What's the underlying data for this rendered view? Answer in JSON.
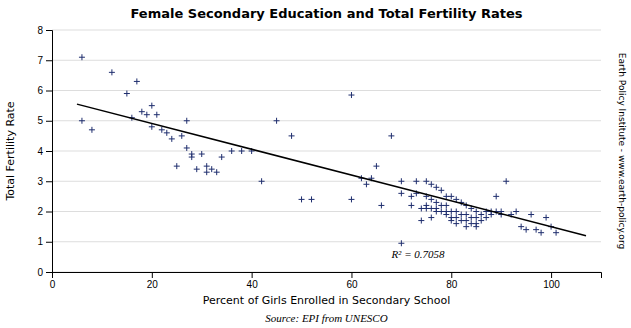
{
  "chart_data": {
    "type": "scatter",
    "title": "Female Secondary Education and Total Fertility Rates",
    "xlabel": "Percent of Girls Enrolled in Secondary School",
    "ylabel": "Total Fertility Rate",
    "annotations": [
      {
        "text": "R² = 0.7058",
        "x": 68,
        "y": 0.45
      },
      {
        "text": "Source: EPI from UNESCO"
      },
      {
        "text": "Earth Policy Institute - www.earth-policy.org"
      }
    ],
    "xlim": [
      0,
      110
    ],
    "ylim": [
      0,
      8
    ],
    "xticks": [
      0,
      20,
      40,
      60,
      80,
      100
    ],
    "yticks": [
      0,
      1,
      2,
      3,
      4,
      5,
      6,
      7,
      8
    ],
    "grid": "y",
    "series": [
      {
        "type": "scatter",
        "color": "#1F2E6E",
        "marker": "plus",
        "x": [
          6,
          6,
          8,
          12,
          15,
          16,
          17,
          18,
          19,
          20,
          20,
          21,
          22,
          23,
          24,
          25,
          26,
          27,
          27,
          28,
          28,
          29,
          30,
          31,
          31,
          32,
          33,
          34,
          36,
          38,
          40,
          42,
          45,
          48,
          50,
          52,
          60,
          60,
          62,
          63,
          64,
          65,
          66,
          68,
          70,
          70,
          72,
          72,
          73,
          73,
          74,
          74,
          75,
          75,
          75,
          75,
          76,
          76,
          76,
          76,
          77,
          77,
          77,
          77,
          78,
          78,
          78,
          79,
          79,
          79,
          79,
          80,
          80,
          80,
          80,
          81,
          81,
          81,
          81,
          82,
          82,
          82,
          83,
          83,
          83,
          83,
          84,
          84,
          84,
          85,
          85,
          85,
          85,
          86,
          86,
          87,
          87,
          88,
          88,
          89,
          89,
          90,
          90,
          91,
          92,
          93,
          94,
          95,
          96,
          97,
          98,
          99,
          100,
          101,
          70
        ],
        "values": [
          7.1,
          5.0,
          4.7,
          6.6,
          5.9,
          5.1,
          6.3,
          5.3,
          5.2,
          5.5,
          4.8,
          5.2,
          4.7,
          4.6,
          4.4,
          3.5,
          4.5,
          5.0,
          4.1,
          3.9,
          3.8,
          3.4,
          3.9,
          3.5,
          3.3,
          3.4,
          3.3,
          3.8,
          4.0,
          4.0,
          4.0,
          3.0,
          5.0,
          4.5,
          2.4,
          2.4,
          2.4,
          5.85,
          3.1,
          2.9,
          3.1,
          3.5,
          2.2,
          4.5,
          3.0,
          2.6,
          2.5,
          2.2,
          3.0,
          2.6,
          2.1,
          1.7,
          3.0,
          2.5,
          2.2,
          2.1,
          2.9,
          2.4,
          2.1,
          1.8,
          2.8,
          2.3,
          2.1,
          2.0,
          2.7,
          2.2,
          2.0,
          2.5,
          2.2,
          2.0,
          1.9,
          2.5,
          2.0,
          1.8,
          1.7,
          2.4,
          2.0,
          1.8,
          1.6,
          2.3,
          1.9,
          1.7,
          2.2,
          1.9,
          1.7,
          1.5,
          2.1,
          1.8,
          1.6,
          2.0,
          1.8,
          1.6,
          1.5,
          1.9,
          1.7,
          2.0,
          1.8,
          2.0,
          1.9,
          2.5,
          2.0,
          2.0,
          1.9,
          3.0,
          1.9,
          2.0,
          1.5,
          1.4,
          1.9,
          1.4,
          1.3,
          1.8,
          1.5,
          1.3,
          0.95
        ]
      },
      {
        "type": "line",
        "color": "#000000",
        "x": [
          5,
          107
        ],
        "values": [
          5.55,
          1.2
        ]
      }
    ]
  }
}
